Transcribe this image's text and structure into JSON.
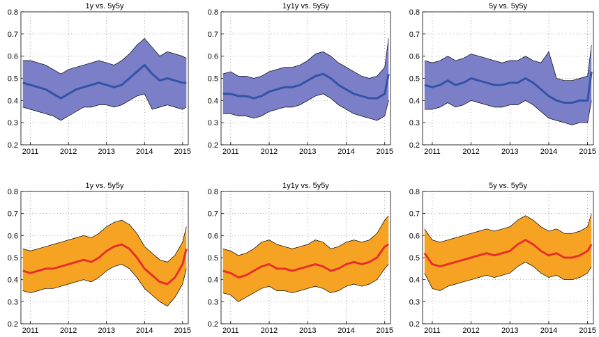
{
  "chart_data": [
    {
      "type": "band-line",
      "title": "1y vs. 5y5y",
      "x": [
        2010.8,
        2011.0,
        2011.2,
        2011.4,
        2011.6,
        2011.8,
        2012.0,
        2012.2,
        2012.4,
        2012.6,
        2012.8,
        2013.0,
        2013.2,
        2013.4,
        2013.6,
        2013.8,
        2014.0,
        2014.2,
        2014.4,
        2014.6,
        2014.8,
        2015.0,
        2015.1
      ],
      "band": {
        "color": "#7a7fc8",
        "edge_color": "#000000",
        "lower": [
          0.37,
          0.36,
          0.35,
          0.34,
          0.33,
          0.31,
          0.33,
          0.35,
          0.37,
          0.37,
          0.38,
          0.38,
          0.37,
          0.38,
          0.4,
          0.42,
          0.43,
          0.36,
          0.37,
          0.38,
          0.37,
          0.36,
          0.37
        ],
        "upper": [
          0.58,
          0.58,
          0.57,
          0.56,
          0.54,
          0.52,
          0.54,
          0.55,
          0.56,
          0.57,
          0.58,
          0.57,
          0.56,
          0.58,
          0.61,
          0.65,
          0.68,
          0.64,
          0.6,
          0.62,
          0.61,
          0.6,
          0.59
        ]
      },
      "line": {
        "color": "#3452a6",
        "values": [
          0.48,
          0.47,
          0.46,
          0.45,
          0.43,
          0.41,
          0.43,
          0.45,
          0.46,
          0.47,
          0.48,
          0.47,
          0.46,
          0.47,
          0.5,
          0.53,
          0.56,
          0.52,
          0.49,
          0.5,
          0.49,
          0.48,
          0.48
        ]
      },
      "xlim": [
        2010.75,
        2015.15
      ],
      "xticks": [
        2011,
        2012,
        2013,
        2014,
        2015
      ],
      "ylim": [
        0.2,
        0.8
      ],
      "yticks": [
        0.2,
        0.3,
        0.4,
        0.5,
        0.6,
        0.7,
        0.8
      ],
      "grid": true
    },
    {
      "type": "band-line",
      "title": "1y1y vs. 5y5y",
      "x": [
        2010.8,
        2011.0,
        2011.2,
        2011.4,
        2011.6,
        2011.8,
        2012.0,
        2012.2,
        2012.4,
        2012.6,
        2012.8,
        2013.0,
        2013.2,
        2013.4,
        2013.6,
        2013.8,
        2014.0,
        2014.2,
        2014.4,
        2014.6,
        2014.8,
        2015.0,
        2015.1
      ],
      "band": {
        "color": "#7a7fc8",
        "edge_color": "#000000",
        "lower": [
          0.34,
          0.34,
          0.33,
          0.33,
          0.32,
          0.33,
          0.35,
          0.36,
          0.37,
          0.37,
          0.38,
          0.4,
          0.42,
          0.43,
          0.41,
          0.38,
          0.36,
          0.34,
          0.33,
          0.32,
          0.31,
          0.33,
          0.4
        ],
        "upper": [
          0.52,
          0.53,
          0.51,
          0.51,
          0.5,
          0.51,
          0.53,
          0.54,
          0.55,
          0.55,
          0.56,
          0.58,
          0.61,
          0.62,
          0.6,
          0.57,
          0.55,
          0.53,
          0.51,
          0.5,
          0.51,
          0.55,
          0.68
        ]
      },
      "line": {
        "color": "#3452a6",
        "values": [
          0.43,
          0.43,
          0.42,
          0.42,
          0.41,
          0.42,
          0.44,
          0.45,
          0.46,
          0.46,
          0.47,
          0.49,
          0.51,
          0.52,
          0.5,
          0.47,
          0.45,
          0.43,
          0.42,
          0.41,
          0.41,
          0.43,
          0.52
        ]
      },
      "xlim": [
        2010.75,
        2015.15
      ],
      "xticks": [
        2011,
        2012,
        2013,
        2014,
        2015
      ],
      "ylim": [
        0.2,
        0.8
      ],
      "yticks": [
        0.2,
        0.3,
        0.4,
        0.5,
        0.6,
        0.7,
        0.8
      ],
      "grid": true
    },
    {
      "type": "band-line",
      "title": "5y vs. 5y5y",
      "x": [
        2010.8,
        2011.0,
        2011.2,
        2011.4,
        2011.6,
        2011.8,
        2012.0,
        2012.2,
        2012.4,
        2012.6,
        2012.8,
        2013.0,
        2013.2,
        2013.4,
        2013.6,
        2013.8,
        2014.0,
        2014.2,
        2014.4,
        2014.6,
        2014.8,
        2015.0,
        2015.1
      ],
      "band": {
        "color": "#7a7fc8",
        "edge_color": "#000000",
        "lower": [
          0.36,
          0.36,
          0.37,
          0.39,
          0.37,
          0.38,
          0.4,
          0.39,
          0.38,
          0.37,
          0.37,
          0.38,
          0.38,
          0.4,
          0.38,
          0.35,
          0.32,
          0.31,
          0.3,
          0.29,
          0.3,
          0.3,
          0.4
        ],
        "upper": [
          0.58,
          0.57,
          0.58,
          0.6,
          0.58,
          0.59,
          0.61,
          0.6,
          0.59,
          0.58,
          0.57,
          0.58,
          0.58,
          0.6,
          0.58,
          0.57,
          0.62,
          0.5,
          0.49,
          0.49,
          0.5,
          0.51,
          0.65
        ]
      },
      "line": {
        "color": "#3452a6",
        "values": [
          0.47,
          0.46,
          0.47,
          0.49,
          0.47,
          0.48,
          0.5,
          0.49,
          0.48,
          0.47,
          0.47,
          0.48,
          0.48,
          0.5,
          0.48,
          0.45,
          0.42,
          0.4,
          0.39,
          0.39,
          0.4,
          0.4,
          0.53
        ]
      },
      "xlim": [
        2010.75,
        2015.15
      ],
      "xticks": [
        2011,
        2012,
        2013,
        2014,
        2015
      ],
      "ylim": [
        0.2,
        0.8
      ],
      "yticks": [
        0.2,
        0.3,
        0.4,
        0.5,
        0.6,
        0.7,
        0.8
      ],
      "grid": true
    },
    {
      "type": "band-line",
      "title": "1y vs. 5y5y",
      "x": [
        2010.8,
        2011.0,
        2011.2,
        2011.4,
        2011.6,
        2011.8,
        2012.0,
        2012.2,
        2012.4,
        2012.6,
        2012.8,
        2013.0,
        2013.2,
        2013.4,
        2013.6,
        2013.8,
        2014.0,
        2014.2,
        2014.4,
        2014.6,
        2014.8,
        2015.0,
        2015.1
      ],
      "band": {
        "color": "#f6a323",
        "edge_color": "#000000",
        "lower": [
          0.35,
          0.34,
          0.35,
          0.36,
          0.36,
          0.37,
          0.38,
          0.39,
          0.4,
          0.39,
          0.41,
          0.44,
          0.46,
          0.47,
          0.45,
          0.41,
          0.36,
          0.33,
          0.3,
          0.28,
          0.32,
          0.38,
          0.45
        ],
        "upper": [
          0.54,
          0.53,
          0.54,
          0.55,
          0.56,
          0.57,
          0.58,
          0.59,
          0.6,
          0.59,
          0.61,
          0.64,
          0.66,
          0.67,
          0.65,
          0.61,
          0.55,
          0.52,
          0.49,
          0.48,
          0.51,
          0.57,
          0.64
        ]
      },
      "line": {
        "color": "#e8302a",
        "values": [
          0.44,
          0.43,
          0.44,
          0.45,
          0.45,
          0.46,
          0.47,
          0.48,
          0.49,
          0.48,
          0.5,
          0.53,
          0.55,
          0.56,
          0.54,
          0.5,
          0.45,
          0.42,
          0.39,
          0.38,
          0.41,
          0.47,
          0.54
        ]
      },
      "xlim": [
        2010.75,
        2015.15
      ],
      "xticks": [
        2011,
        2012,
        2013,
        2014,
        2015
      ],
      "ylim": [
        0.2,
        0.8
      ],
      "yticks": [
        0.2,
        0.3,
        0.4,
        0.5,
        0.6,
        0.7,
        0.8
      ],
      "grid": true
    },
    {
      "type": "band-line",
      "title": "1y1y vs. 5y5y",
      "x": [
        2010.8,
        2011.0,
        2011.2,
        2011.4,
        2011.6,
        2011.8,
        2012.0,
        2012.2,
        2012.4,
        2012.6,
        2012.8,
        2013.0,
        2013.2,
        2013.4,
        2013.6,
        2013.8,
        2014.0,
        2014.2,
        2014.4,
        2014.6,
        2014.8,
        2015.0,
        2015.1
      ],
      "band": {
        "color": "#f6a323",
        "edge_color": "#000000",
        "lower": [
          0.34,
          0.33,
          0.3,
          0.32,
          0.34,
          0.36,
          0.37,
          0.35,
          0.35,
          0.34,
          0.35,
          0.36,
          0.37,
          0.36,
          0.34,
          0.35,
          0.37,
          0.38,
          0.37,
          0.38,
          0.4,
          0.45,
          0.47
        ],
        "upper": [
          0.54,
          0.53,
          0.51,
          0.52,
          0.54,
          0.57,
          0.58,
          0.56,
          0.55,
          0.54,
          0.55,
          0.56,
          0.58,
          0.57,
          0.54,
          0.55,
          0.57,
          0.58,
          0.57,
          0.58,
          0.61,
          0.67,
          0.69
        ]
      },
      "line": {
        "color": "#e8302a",
        "values": [
          0.44,
          0.43,
          0.41,
          0.42,
          0.44,
          0.46,
          0.47,
          0.45,
          0.45,
          0.44,
          0.45,
          0.46,
          0.47,
          0.46,
          0.44,
          0.45,
          0.47,
          0.48,
          0.47,
          0.48,
          0.5,
          0.55,
          0.56
        ]
      },
      "xlim": [
        2010.75,
        2015.15
      ],
      "xticks": [
        2011,
        2012,
        2013,
        2014,
        2015
      ],
      "ylim": [
        0.2,
        0.8
      ],
      "yticks": [
        0.2,
        0.3,
        0.4,
        0.5,
        0.6,
        0.7,
        0.8
      ],
      "grid": true
    },
    {
      "type": "band-line",
      "title": "5y vs. 5y5y",
      "x": [
        2010.8,
        2011.0,
        2011.2,
        2011.4,
        2011.6,
        2011.8,
        2012.0,
        2012.2,
        2012.4,
        2012.6,
        2012.8,
        2013.0,
        2013.2,
        2013.4,
        2013.6,
        2013.8,
        2014.0,
        2014.2,
        2014.4,
        2014.6,
        2014.8,
        2015.0,
        2015.1
      ],
      "band": {
        "color": "#f6a323",
        "edge_color": "#000000",
        "lower": [
          0.43,
          0.36,
          0.35,
          0.37,
          0.38,
          0.39,
          0.4,
          0.41,
          0.42,
          0.41,
          0.42,
          0.43,
          0.46,
          0.48,
          0.46,
          0.43,
          0.41,
          0.42,
          0.4,
          0.4,
          0.41,
          0.43,
          0.46
        ],
        "upper": [
          0.63,
          0.58,
          0.57,
          0.58,
          0.59,
          0.6,
          0.61,
          0.62,
          0.63,
          0.62,
          0.63,
          0.64,
          0.67,
          0.69,
          0.67,
          0.64,
          0.62,
          0.63,
          0.61,
          0.61,
          0.62,
          0.64,
          0.7
        ]
      },
      "line": {
        "color": "#e8302a",
        "values": [
          0.52,
          0.47,
          0.46,
          0.47,
          0.48,
          0.49,
          0.5,
          0.51,
          0.52,
          0.51,
          0.52,
          0.53,
          0.56,
          0.58,
          0.56,
          0.53,
          0.51,
          0.52,
          0.5,
          0.5,
          0.51,
          0.53,
          0.56
        ]
      },
      "xlim": [
        2010.75,
        2015.15
      ],
      "xticks": [
        2011,
        2012,
        2013,
        2014,
        2015
      ],
      "ylim": [
        0.2,
        0.8
      ],
      "yticks": [
        0.2,
        0.3,
        0.4,
        0.5,
        0.6,
        0.7,
        0.8
      ],
      "grid": true
    }
  ]
}
